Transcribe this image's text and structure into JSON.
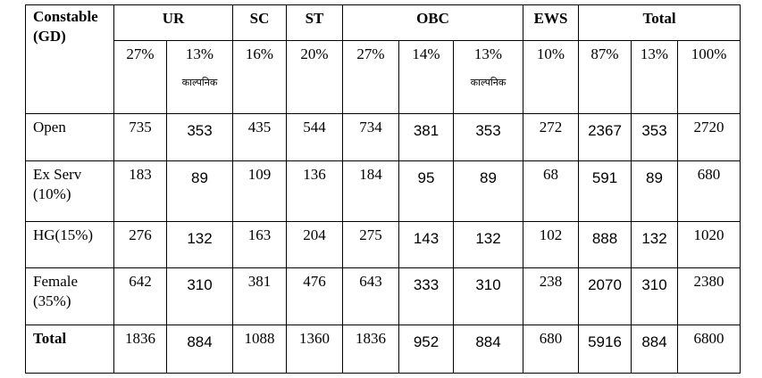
{
  "table": {
    "header": [
      "Constable (GD)",
      "UR",
      "SC",
      "ST",
      "OBC",
      "EWS",
      "Total"
    ],
    "subheader": [
      {
        "text": "27%"
      },
      {
        "text": "13%",
        "note": "काल्पनिक"
      },
      {
        "text": "16%"
      },
      {
        "text": "20%"
      },
      {
        "text": "27%"
      },
      {
        "text": "14%"
      },
      {
        "text": "13%",
        "note": "काल्पनिक"
      },
      {
        "text": "10%"
      },
      {
        "text": "87%"
      },
      {
        "text": "13%"
      },
      {
        "text": "100%"
      }
    ],
    "rows": [
      {
        "label": "Open",
        "cells": [
          735,
          353,
          435,
          544,
          734,
          381,
          353,
          272,
          2367,
          353,
          2720
        ]
      },
      {
        "label": "Ex Serv (10%)",
        "cells": [
          183,
          89,
          109,
          136,
          184,
          95,
          89,
          68,
          591,
          89,
          680
        ]
      },
      {
        "label": "HG(15%)",
        "cells": [
          276,
          132,
          163,
          204,
          275,
          143,
          132,
          102,
          888,
          132,
          1020
        ]
      },
      {
        "label": "Female (35%)",
        "cells": [
          642,
          310,
          381,
          476,
          643,
          333,
          310,
          238,
          2070,
          310,
          2380
        ]
      },
      {
        "label": "Total",
        "cells": [
          1836,
          884,
          1088,
          1360,
          1836,
          952,
          884,
          680,
          5916,
          884,
          6800
        ]
      }
    ]
  }
}
